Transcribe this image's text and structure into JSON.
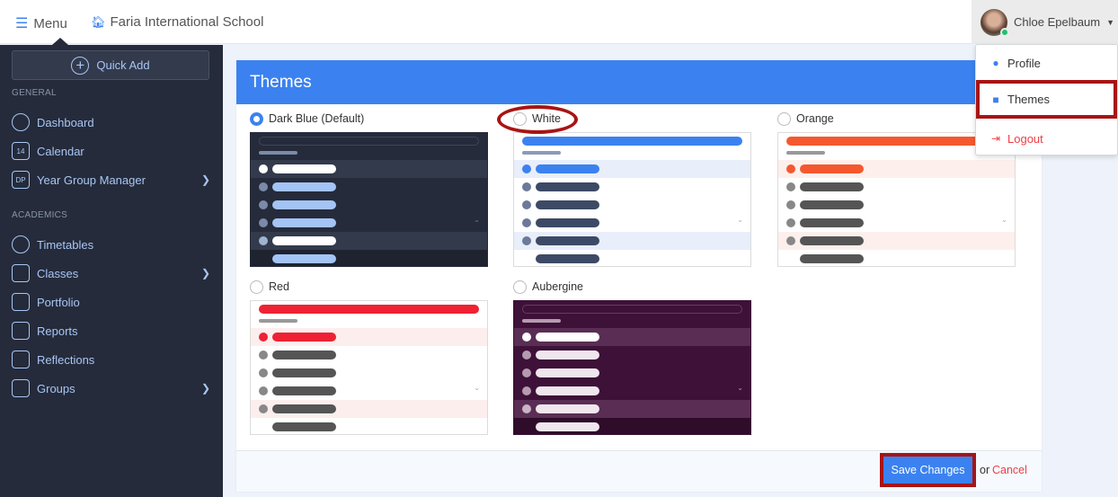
{
  "header": {
    "menu_label": "Menu",
    "school": "Faria International School",
    "user_name": "Chloe Epelbaum"
  },
  "user_menu": {
    "items": [
      {
        "label": "Profile",
        "icon": "user-circle-icon"
      },
      {
        "label": "Themes",
        "icon": "bucket-icon"
      },
      {
        "label": "Logout",
        "icon": "sign-out-icon"
      }
    ]
  },
  "sidebar": {
    "quick_add": "Quick Add",
    "sections": [
      {
        "title": "GENERAL",
        "items": [
          {
            "label": "Dashboard",
            "icon": "dashboard-icon"
          },
          {
            "label": "Calendar",
            "icon": "calendar-icon",
            "icon_text": "14"
          },
          {
            "label": "Year Group Manager",
            "icon": "dp-book-icon",
            "icon_text": "DP",
            "chevron": true
          }
        ]
      },
      {
        "title": "ACADEMICS",
        "items": [
          {
            "label": "Timetables",
            "icon": "clock-icon"
          },
          {
            "label": "Classes",
            "icon": "book-icon",
            "chevron": true
          },
          {
            "label": "Portfolio",
            "icon": "briefcase-icon"
          },
          {
            "label": "Reports",
            "icon": "report-icon"
          },
          {
            "label": "Reflections",
            "icon": "search-doc-icon"
          },
          {
            "label": "Groups",
            "icon": "users-icon",
            "chevron": true
          }
        ]
      }
    ]
  },
  "panel": {
    "title": "Themes",
    "save_label": "Save Changes",
    "or_label": "or",
    "cancel_label": "Cancel",
    "themes": [
      {
        "label": "Dark Blue (Default)",
        "selected": true,
        "colors": {
          "bg": "#252b3a",
          "pill": "#3d4659",
          "pill_fill": false,
          "sub": "#7a8aa8",
          "hl": "#323a4c",
          "adot": "#ffffff",
          "abar": "#ffffff",
          "dot": "#7a8aa8",
          "bar": "#a3c4f5",
          "hdot": "#9db3d0",
          "hbar": "#ffffff",
          "last": "#1f2330",
          "lbar": "#a3c4f5",
          "chev": "#6b7a99"
        }
      },
      {
        "label": "White",
        "selected": false,
        "colors": {
          "bg": "#ffffff",
          "pill": "#3b82f0",
          "pill_fill": true,
          "sub": "#8a9bb8",
          "hl": "#e8eefa",
          "adot": "#3b82f0",
          "abar": "#3b82f0",
          "dot": "#6b7a99",
          "bar": "#3d4a66",
          "hdot": "#6b7a99",
          "hbar": "#3d4a66",
          "last": "#ffffff",
          "lbar": "#3d4a66",
          "chev": "#aab"
        }
      },
      {
        "label": "Orange",
        "selected": false,
        "colors": {
          "bg": "#ffffff",
          "pill": "#f5582e",
          "pill_fill": true,
          "sub": "#999999",
          "hl": "#fdf0ec",
          "adot": "#f5582e",
          "abar": "#f5582e",
          "dot": "#888888",
          "bar": "#555555",
          "hdot": "#888888",
          "hbar": "#555555",
          "last": "#ffffff",
          "lbar": "#555555",
          "chev": "#aaa"
        }
      },
      {
        "label": "Red",
        "selected": false,
        "colors": {
          "bg": "#ffffff",
          "pill": "#ee2233",
          "pill_fill": true,
          "sub": "#999999",
          "hl": "#fdeeee",
          "adot": "#ee2233",
          "abar": "#ee2233",
          "dot": "#888888",
          "bar": "#555555",
          "hdot": "#888888",
          "hbar": "#555555",
          "last": "#ffffff",
          "lbar": "#555555",
          "chev": "#aaa"
        }
      },
      {
        "label": "Aubergine",
        "selected": false,
        "colors": {
          "bg": "#3d1138",
          "pill": "#6a3a64",
          "pill_fill": false,
          "sub": "#b59ab0",
          "hl": "#5a2d54",
          "adot": "#ffffff",
          "abar": "#ffffff",
          "dot": "#b59ab0",
          "bar": "#f0e6ee",
          "hdot": "#c9b3c5",
          "hbar": "#f0e6ee",
          "last": "#2e0c2a",
          "lbar": "#f0e6ee",
          "chev": "#b59ab0"
        }
      }
    ]
  }
}
